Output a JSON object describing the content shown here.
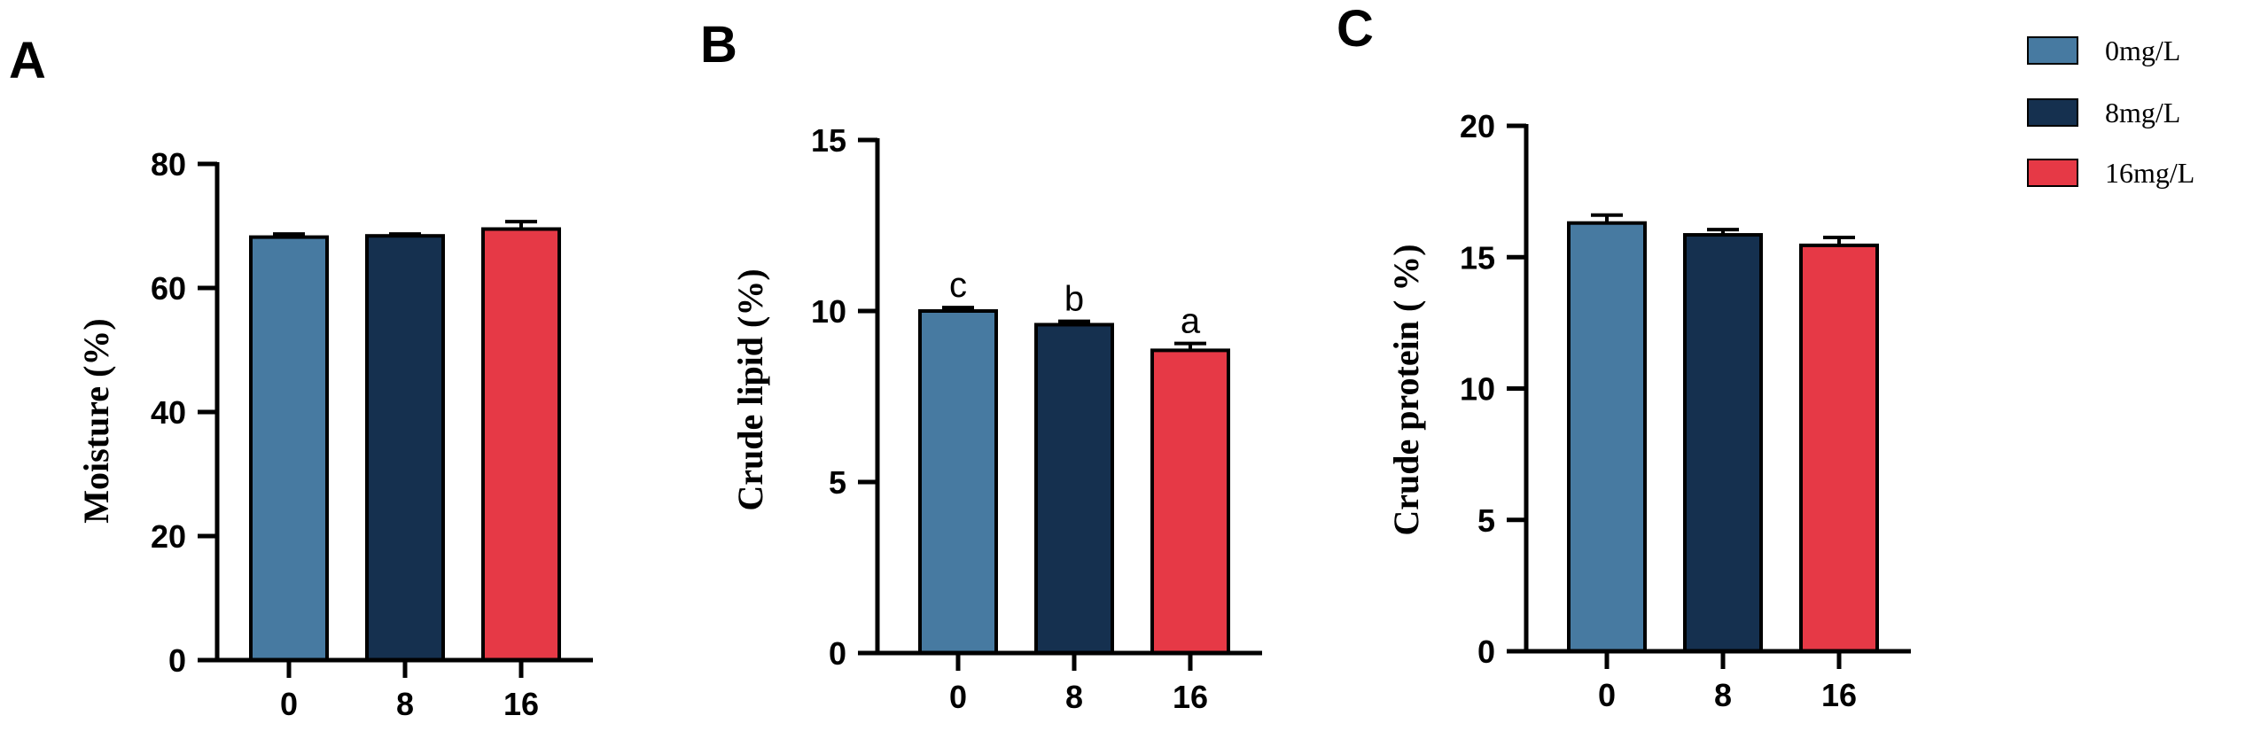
{
  "legend": {
    "entries": [
      {
        "label": "0mg/L",
        "color": "#477aa1"
      },
      {
        "label": "8mg/L",
        "color": "#15304f"
      },
      {
        "label": "16mg/L",
        "color": "#e63946"
      }
    ]
  },
  "chart_data": [
    {
      "type": "bar",
      "panel": "A",
      "categories": [
        "0",
        "8",
        "16"
      ],
      "values": [
        68.2,
        68.4,
        69.5
      ],
      "errors": [
        0.5,
        0.3,
        1.2
      ],
      "series": [
        {
          "name": "0mg/L",
          "value": 68.2,
          "color": "#477aa1"
        },
        {
          "name": "8mg/L",
          "value": 68.4,
          "color": "#15304f"
        },
        {
          "name": "16mg/L",
          "value": 69.5,
          "color": "#e63946"
        }
      ],
      "ylabel": "Moisture (%)",
      "ylim": [
        0,
        80
      ],
      "yticks": [
        "0",
        "20",
        "40",
        "60",
        "80"
      ],
      "ytick_values": [
        0,
        20,
        40,
        60,
        80
      ],
      "sig_labels": [],
      "grid": false
    },
    {
      "type": "bar",
      "panel": "B",
      "categories": [
        "0",
        "8",
        "16"
      ],
      "values": [
        10.0,
        9.6,
        8.85
      ],
      "errors": [
        0.1,
        0.1,
        0.2
      ],
      "series": [
        {
          "name": "0mg/L",
          "value": 10.0,
          "color": "#477aa1"
        },
        {
          "name": "8mg/L",
          "value": 9.6,
          "color": "#15304f"
        },
        {
          "name": "16mg/L",
          "value": 8.85,
          "color": "#e63946"
        }
      ],
      "ylabel": "Crude lipid (%)",
      "ylim": [
        0,
        15
      ],
      "yticks": [
        "0",
        "5",
        "10",
        "15"
      ],
      "ytick_values": [
        0,
        5,
        10,
        15
      ],
      "sig_labels": [
        "c",
        "b",
        "a"
      ],
      "grid": false
    },
    {
      "type": "bar",
      "panel": "C",
      "categories": [
        "0",
        "8",
        "16"
      ],
      "values": [
        16.3,
        15.85,
        15.45
      ],
      "errors": [
        0.3,
        0.2,
        0.3
      ],
      "series": [
        {
          "name": "0mg/L",
          "value": 16.3,
          "color": "#477aa1"
        },
        {
          "name": "8mg/L",
          "value": 15.85,
          "color": "#15304f"
        },
        {
          "name": "16mg/L",
          "value": 15.45,
          "color": "#e63946"
        }
      ],
      "ylabel": "Crude protein ( %)",
      "ylim": [
        0,
        20
      ],
      "yticks": [
        "0",
        "5",
        "10",
        "15",
        "20"
      ],
      "ytick_values": [
        0,
        5,
        10,
        15,
        20
      ],
      "sig_labels": [],
      "grid": false
    }
  ]
}
